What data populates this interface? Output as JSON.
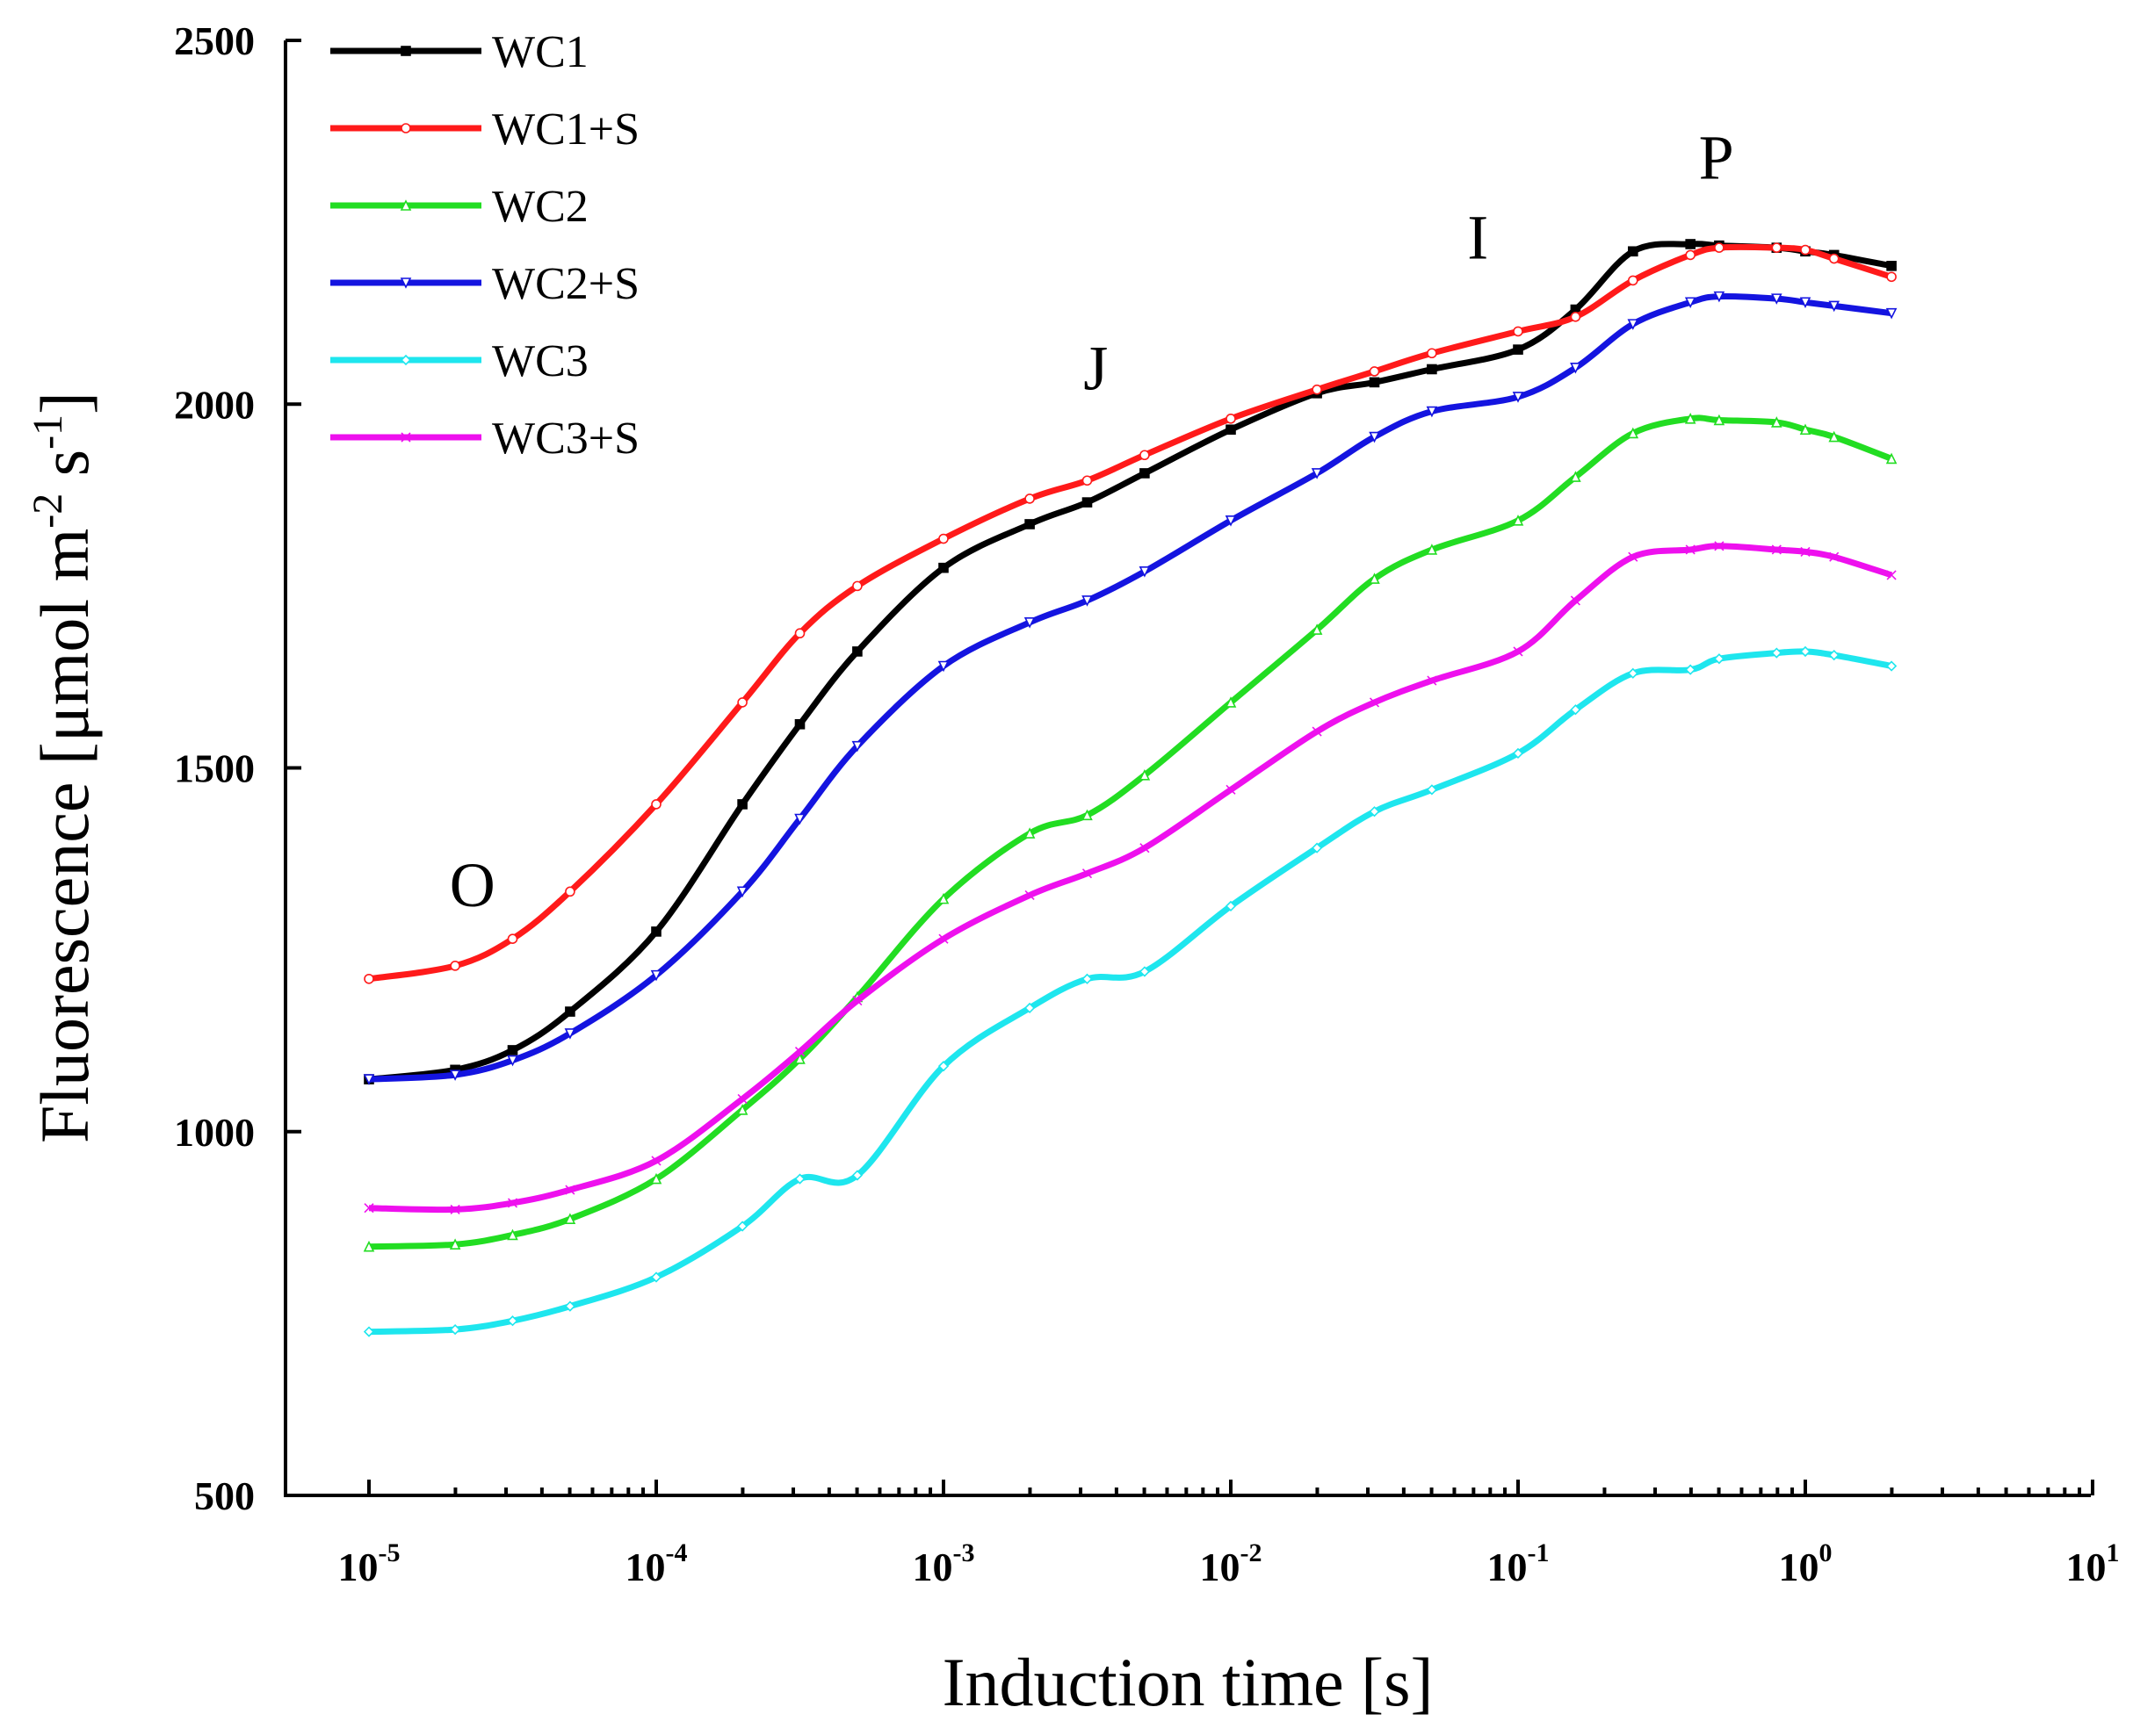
{
  "chart_data": {
    "type": "line",
    "title": "",
    "xlabel": "Induction time [s]",
    "ylabel": "Fluorescence [μmol m-2 s-1]",
    "ylabel_parts": {
      "main": "Fluorescence [μmol m",
      "sup1": "-2",
      "mid": " s",
      "sup2": "-1",
      "end": "]"
    },
    "xscale": "log",
    "xlim": [
      -5,
      1
    ],
    "ylim": [
      500,
      2500
    ],
    "yticks": [
      {
        "value": 500,
        "label": "500"
      },
      {
        "value": 1000,
        "label": "1000"
      },
      {
        "value": 1500,
        "label": "1500"
      },
      {
        "value": 2000,
        "label": "2000"
      },
      {
        "value": 2500,
        "label": "2500"
      }
    ],
    "xticks": [
      {
        "exp": -5,
        "base": "10",
        "sup": "-5"
      },
      {
        "exp": -4,
        "base": "10",
        "sup": "-4"
      },
      {
        "exp": -3,
        "base": "10",
        "sup": "-3"
      },
      {
        "exp": -2,
        "base": "10",
        "sup": "-2"
      },
      {
        "exp": -1,
        "base": "10",
        "sup": "-1"
      },
      {
        "exp": 0,
        "base": "10",
        "sup": "0"
      },
      {
        "exp": 1,
        "base": "10",
        "sup": "1"
      }
    ],
    "legend_position": "top-left",
    "phase_labels": [
      {
        "text": "O",
        "log_x": -4.64,
        "y": 1310
      },
      {
        "text": "J",
        "log_x": -2.47,
        "y": 2020
      },
      {
        "text": "I",
        "log_x": -1.14,
        "y": 2200
      },
      {
        "text": "P",
        "log_x": -0.31,
        "y": 2310
      }
    ],
    "log_x": [
      -5.0,
      -4.7,
      -4.5,
      -4.3,
      -4.0,
      -3.7,
      -3.5,
      -3.3,
      -3.0,
      -2.7,
      -2.5,
      -2.3,
      -2.0,
      -1.7,
      -1.5,
      -1.3,
      -1.0,
      -0.8,
      -0.6,
      -0.4,
      -0.3,
      -0.1,
      0.0,
      0.1,
      0.3
    ],
    "series": [
      {
        "name": "WC1",
        "color": "#000000",
        "marker": "square",
        "values": [
          1072,
          1085,
          1112,
          1165,
          1275,
          1450,
          1560,
          1660,
          1775,
          1835,
          1865,
          1905,
          1965,
          2015,
          2030,
          2048,
          2075,
          2130,
          2210,
          2220,
          2218,
          2215,
          2210,
          2205,
          2190
        ]
      },
      {
        "name": "WC1+S",
        "color": "#ff1a1a",
        "marker": "circle",
        "values": [
          1210,
          1228,
          1265,
          1330,
          1450,
          1590,
          1685,
          1750,
          1815,
          1870,
          1895,
          1930,
          1980,
          2020,
          2045,
          2070,
          2100,
          2120,
          2170,
          2205,
          2215,
          2215,
          2212,
          2200,
          2175
        ]
      },
      {
        "name": "WC2",
        "color": "#22dd22",
        "marker": "triangle-up",
        "values": [
          842,
          845,
          858,
          880,
          935,
          1030,
          1100,
          1185,
          1320,
          1410,
          1435,
          1490,
          1590,
          1690,
          1760,
          1800,
          1840,
          1900,
          1960,
          1980,
          1978,
          1975,
          1965,
          1955,
          1925
        ]
      },
      {
        "name": "WC2+S",
        "color": "#1414e0",
        "marker": "triangle-down",
        "values": [
          1072,
          1078,
          1098,
          1135,
          1215,
          1330,
          1430,
          1530,
          1640,
          1700,
          1730,
          1770,
          1840,
          1905,
          1955,
          1990,
          2010,
          2050,
          2110,
          2140,
          2148,
          2145,
          2140,
          2135,
          2125
        ]
      },
      {
        "name": "WC3",
        "color": "#1ee6ee",
        "marker": "diamond",
        "values": [
          725,
          728,
          740,
          760,
          800,
          870,
          935,
          940,
          1090,
          1170,
          1210,
          1220,
          1310,
          1390,
          1440,
          1470,
          1520,
          1580,
          1630,
          1635,
          1650,
          1658,
          1660,
          1655,
          1640
        ]
      },
      {
        "name": "WC3+S",
        "color": "#ee10ee",
        "marker": "x",
        "values": [
          895,
          893,
          902,
          920,
          960,
          1045,
          1110,
          1180,
          1265,
          1325,
          1355,
          1390,
          1470,
          1550,
          1590,
          1620,
          1660,
          1730,
          1790,
          1800,
          1805,
          1800,
          1797,
          1790,
          1765
        ]
      }
    ]
  }
}
